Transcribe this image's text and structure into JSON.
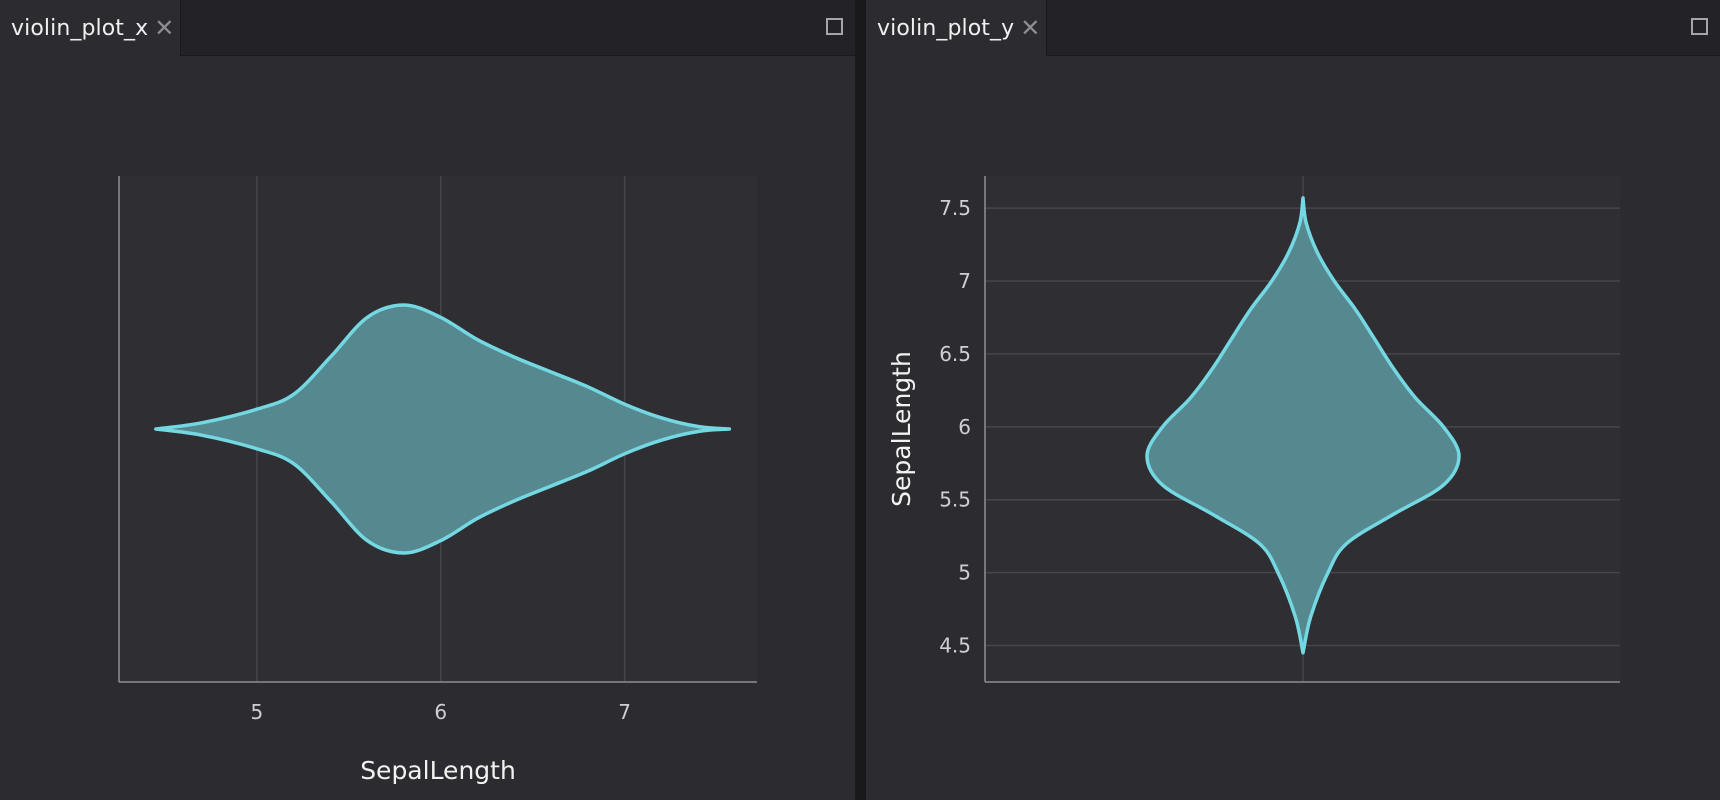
{
  "tabs": [
    {
      "label": "violin_plot_x",
      "close_icon": "close-icon"
    },
    {
      "label": "violin_plot_y",
      "close_icon": "close-icon"
    }
  ],
  "colors": {
    "violin_fill": "#568890",
    "violin_stroke": "#74d8e2",
    "grid": "#46454b",
    "axis": "#8f8e94",
    "tick_text": "#cfcfd3",
    "label_text": "#f2f2f2",
    "plot_bg": "#2f2e33"
  },
  "chart_data": [
    {
      "type": "violin",
      "orientation": "horizontal",
      "title": "",
      "xlabel": "SepalLength",
      "ylabel": "",
      "xlim": [
        4.25,
        7.72
      ],
      "xticks": [
        5,
        6,
        7
      ],
      "tick_labels": [
        "5",
        "6",
        "7"
      ],
      "grid": "vertical",
      "density": {
        "values": [
          4.45,
          4.7,
          5.0,
          5.2,
          5.4,
          5.6,
          5.8,
          6.0,
          6.2,
          6.4,
          6.6,
          6.8,
          7.0,
          7.2,
          7.4,
          7.57
        ],
        "half_width": [
          0.0,
          0.05,
          0.16,
          0.28,
          0.58,
          0.9,
          1.0,
          0.9,
          0.72,
          0.58,
          0.46,
          0.34,
          0.2,
          0.09,
          0.02,
          0.0
        ]
      }
    },
    {
      "type": "violin",
      "orientation": "vertical",
      "title": "",
      "xlabel": "",
      "ylabel": "SepalLength",
      "ylim": [
        4.25,
        7.72
      ],
      "yticks": [
        4.5,
        5,
        5.5,
        6,
        6.5,
        7,
        7.5
      ],
      "tick_labels": [
        "4.5",
        "5",
        "5.5",
        "6",
        "6.5",
        "7",
        "7.5"
      ],
      "grid": "horizontal",
      "density": {
        "values": [
          4.45,
          4.7,
          5.0,
          5.2,
          5.4,
          5.6,
          5.8,
          6.0,
          6.2,
          6.4,
          6.6,
          6.8,
          7.0,
          7.2,
          7.4,
          7.57
        ],
        "half_width": [
          0.0,
          0.05,
          0.16,
          0.28,
          0.58,
          0.9,
          1.0,
          0.9,
          0.72,
          0.58,
          0.46,
          0.34,
          0.2,
          0.09,
          0.02,
          0.0
        ]
      }
    }
  ]
}
